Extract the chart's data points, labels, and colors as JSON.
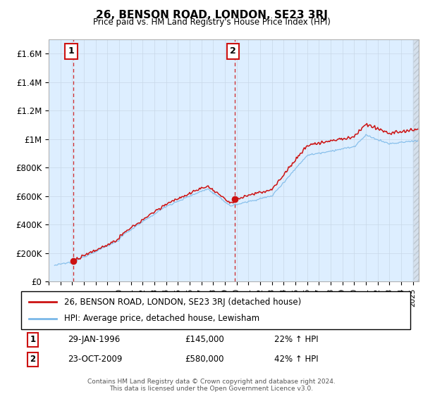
{
  "title": "26, BENSON ROAD, LONDON, SE23 3RJ",
  "subtitle": "Price paid vs. HM Land Registry's House Price Index (HPI)",
  "sale1_date": "29-JAN-1996",
  "sale1_price": 145000,
  "sale1_label": "1",
  "sale1_pct": "22% ↑ HPI",
  "sale2_date": "23-OCT-2009",
  "sale2_price": 580000,
  "sale2_label": "2",
  "sale2_pct": "42% ↑ HPI",
  "legend_line1": "26, BENSON ROAD, LONDON, SE23 3RJ (detached house)",
  "legend_line2": "HPI: Average price, detached house, Lewisham",
  "footer": "Contains HM Land Registry data © Crown copyright and database right 2024.\nThis data is licensed under the Open Government Licence v3.0.",
  "hpi_color": "#7ab8e8",
  "price_color": "#cc1111",
  "dashed_color": "#cc1111",
  "grid_color": "#c8d8e8",
  "bg_color": "#ddeeff",
  "ylim": [
    0,
    1700000
  ],
  "yticks": [
    0,
    200000,
    400000,
    600000,
    800000,
    1000000,
    1200000,
    1400000,
    1600000
  ],
  "xlim_start": 1994.5,
  "xlim_end": 2025.5,
  "sale1_x": 1996.08,
  "sale2_x": 2009.83
}
